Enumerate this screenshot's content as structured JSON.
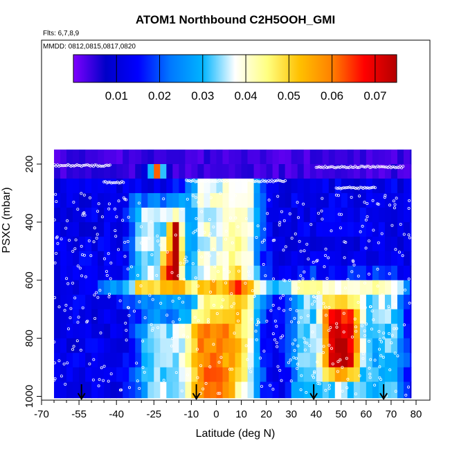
{
  "chart_data": {
    "type": "heatmap",
    "title": "ATOM1 Northbound C2H5OOH_GMI",
    "annotation_flights": "Flts: 6,7,8,9",
    "annotation_dates": "MMDD: 0812,0815,0817,0820",
    "xlabel": "Latitude (deg N)",
    "ylabel": "PSXC (mbar)",
    "xlim": [
      -70,
      80
    ],
    "ylim": [
      1000,
      140
    ],
    "y_reversed": true,
    "x_ticks": [
      -70,
      -55,
      -40,
      -25,
      -10,
      0,
      10,
      20,
      30,
      40,
      50,
      60,
      70,
      80
    ],
    "x_tick_labels": [
      "-70",
      "-55",
      "-40",
      "-25",
      "-10",
      "0",
      "10",
      "20",
      "30",
      "40",
      "50",
      "60",
      "70",
      "80"
    ],
    "x_minor_ticks": [
      -65,
      -60,
      -50,
      -45,
      -35,
      -30,
      -20,
      -15,
      -5,
      5,
      15,
      25,
      35,
      45,
      55,
      65,
      75
    ],
    "y_ticks": [
      200,
      400,
      600,
      800,
      1000
    ],
    "y_tick_labels": [
      "200",
      "400",
      "600",
      "800",
      "1000"
    ],
    "colorbar": {
      "min": 0.0,
      "max": 0.075,
      "ticks": [
        0.01,
        0.02,
        0.03,
        0.04,
        0.05,
        0.06,
        0.07
      ],
      "tick_labels": [
        "0.01",
        "0.02",
        "0.03",
        "0.04",
        "0.05",
        "0.06",
        "0.07"
      ],
      "colors": [
        "#7f00ff",
        "#0000c8",
        "#0000ff",
        "#0078ff",
        "#00b4ff",
        "#ffffff",
        "#ffff80",
        "#ffc000",
        "#ff8000",
        "#ff0000",
        "#b40000"
      ]
    },
    "x_extent": [
      -65,
      78
    ],
    "pressure_levels": [
      175,
      225,
      275,
      325,
      375,
      425,
      475,
      525,
      575,
      625,
      675,
      725,
      775,
      825,
      875,
      925,
      975
    ],
    "features": [
      {
        "name": "upper background",
        "p_range": [
          175,
          265
        ],
        "value": 0.002
      },
      {
        "name": "southern mid band",
        "lat_range": [
          -30,
          -15
        ],
        "p_range": [
          370,
          620
        ],
        "value": 0.03
      },
      {
        "name": "southern high core",
        "lat_center": -17,
        "p_range": [
          420,
          600
        ],
        "value": 0.065
      },
      {
        "name": "southern top streak",
        "lat_center": -23,
        "p_range": [
          200,
          260
        ],
        "value": 0.055
      },
      {
        "name": "equatorial column",
        "lat_range": [
          -5,
          15
        ],
        "p_range": [
          260,
          1000
        ],
        "value": 0.034
      },
      {
        "name": "southern boundary layer",
        "lat_range": [
          -25,
          0
        ],
        "p_range": [
          760,
          1000
        ],
        "value": 0.03
      },
      {
        "name": "northern high core",
        "lat_range": [
          45,
          55
        ],
        "p_range": [
          700,
          900
        ],
        "value": 0.058
      },
      {
        "name": "northern band",
        "lat_range": [
          35,
          70
        ],
        "p_range": [
          640,
          1000
        ],
        "value": 0.03
      }
    ],
    "flight_markers_lat": [
      -54,
      -8,
      39,
      67
    ],
    "sample_dots": "white open circles along flight tracks"
  }
}
